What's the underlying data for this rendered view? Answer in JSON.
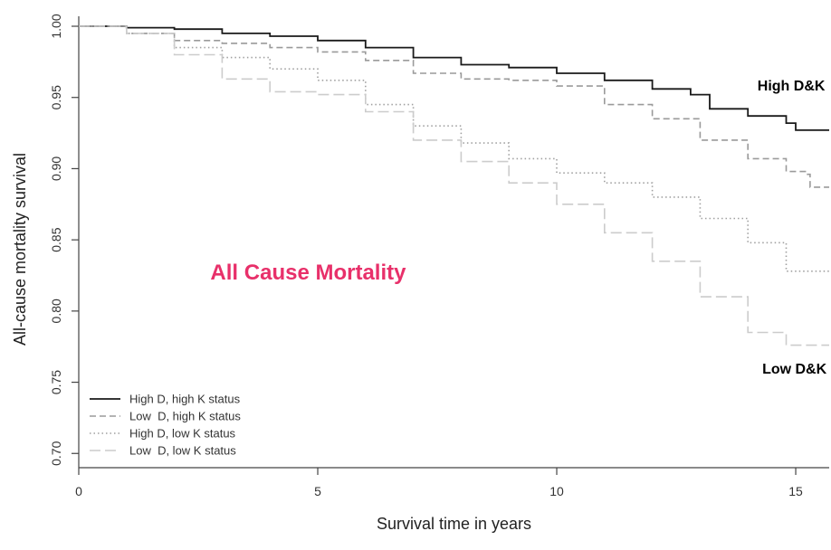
{
  "chart_data": {
    "type": "line",
    "title": "",
    "xlabel": "Survival time in years",
    "ylabel": "All-cause mortality survival",
    "xlim": [
      0,
      15.7
    ],
    "ylim": [
      0.69,
      1.007
    ],
    "xticks": [
      0,
      5,
      10,
      15
    ],
    "yticks": [
      0.7,
      0.75,
      0.8,
      0.85,
      0.9,
      0.95,
      1.0
    ],
    "xtick_labels": [
      "0",
      "5",
      "10",
      "15"
    ],
    "ytick_labels": [
      "0.70",
      "0.75",
      "0.80",
      "0.85",
      "0.90",
      "0.95",
      "1.00"
    ],
    "grid": false,
    "legend_position": "bottom-left",
    "series": [
      {
        "name": "High D, high K status",
        "style": "solid",
        "color": "#1a1a1a",
        "points": [
          [
            0,
            1.0
          ],
          [
            1,
            0.999
          ],
          [
            2,
            0.998
          ],
          [
            3,
            0.995
          ],
          [
            4,
            0.993
          ],
          [
            5,
            0.99
          ],
          [
            6,
            0.985
          ],
          [
            7,
            0.978
          ],
          [
            8,
            0.973
          ],
          [
            9,
            0.971
          ],
          [
            10,
            0.967
          ],
          [
            11,
            0.962
          ],
          [
            12,
            0.956
          ],
          [
            12.8,
            0.952
          ],
          [
            13.2,
            0.942
          ],
          [
            14,
            0.937
          ],
          [
            14.8,
            0.932
          ],
          [
            15,
            0.927
          ],
          [
            15.7,
            0.927
          ]
        ]
      },
      {
        "name": "Low  D, high K status",
        "style": "dashed",
        "color": "#9a9a9a",
        "points": [
          [
            0,
            1.0
          ],
          [
            1,
            0.995
          ],
          [
            2,
            0.99
          ],
          [
            3,
            0.988
          ],
          [
            4,
            0.985
          ],
          [
            5,
            0.982
          ],
          [
            6,
            0.976
          ],
          [
            7,
            0.967
          ],
          [
            8,
            0.963
          ],
          [
            9,
            0.962
          ],
          [
            10,
            0.958
          ],
          [
            11,
            0.945
          ],
          [
            12,
            0.935
          ],
          [
            13,
            0.92
          ],
          [
            14,
            0.907
          ],
          [
            14.8,
            0.898
          ],
          [
            15.2,
            0.896
          ],
          [
            15.3,
            0.887
          ],
          [
            15.7,
            0.887
          ]
        ]
      },
      {
        "name": "High D, low K status",
        "style": "dotted",
        "color": "#a0a0a0",
        "points": [
          [
            0,
            1.0
          ],
          [
            1,
            0.995
          ],
          [
            2,
            0.985
          ],
          [
            3,
            0.978
          ],
          [
            4,
            0.97
          ],
          [
            5,
            0.962
          ],
          [
            6,
            0.945
          ],
          [
            7,
            0.93
          ],
          [
            8,
            0.918
          ],
          [
            9,
            0.907
          ],
          [
            10,
            0.897
          ],
          [
            11,
            0.89
          ],
          [
            12,
            0.88
          ],
          [
            13,
            0.865
          ],
          [
            14,
            0.848
          ],
          [
            14.8,
            0.828
          ],
          [
            15.7,
            0.828
          ]
        ]
      },
      {
        "name": "Low  D, low K status",
        "style": "longdash",
        "color": "#cccccc",
        "points": [
          [
            0,
            1.0
          ],
          [
            1,
            0.995
          ],
          [
            2,
            0.98
          ],
          [
            3,
            0.963
          ],
          [
            4,
            0.954
          ],
          [
            5,
            0.952
          ],
          [
            6,
            0.94
          ],
          [
            7,
            0.92
          ],
          [
            8,
            0.905
          ],
          [
            9,
            0.89
          ],
          [
            10,
            0.875
          ],
          [
            11,
            0.855
          ],
          [
            12,
            0.835
          ],
          [
            13,
            0.81
          ],
          [
            14,
            0.785
          ],
          [
            14.8,
            0.776
          ],
          [
            15.7,
            0.776
          ]
        ]
      }
    ],
    "line_labels": [
      {
        "text": "High D&K",
        "x": 14.2,
        "y": 0.955
      },
      {
        "text": "Low D&K",
        "x": 14.3,
        "y": 0.756
      }
    ],
    "annotation": {
      "text": "All Cause Mortality",
      "color": "#e8306a",
      "x": 4.8,
      "y": 0.822
    }
  }
}
